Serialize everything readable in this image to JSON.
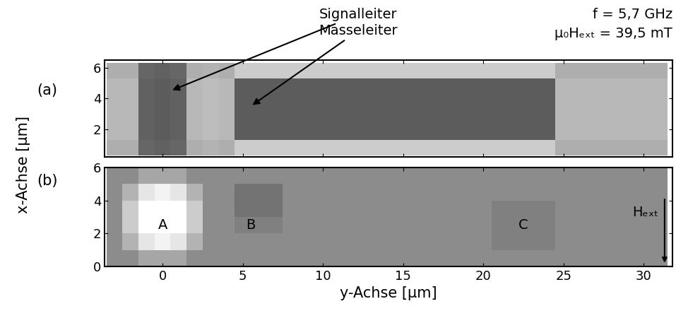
{
  "figure": {
    "y_label": "x-Achse [µm]",
    "notes": [
      "f = 5,7 GHz",
      "µ₀Hₑₓₜ = 39,5 mT"
    ]
  },
  "chart_data": [
    {
      "type": "heatmap",
      "panel": "(a)",
      "color": "gray",
      "color_range": [
        0,
        1
      ],
      "xlim": [
        -3.6,
        31.8
      ],
      "xticks": [
        0,
        5,
        10,
        15,
        20,
        25,
        30
      ],
      "ylim": [
        0.2,
        6.5
      ],
      "yticks": [
        2,
        4,
        6
      ],
      "tick_labels": "y",
      "columns": [
        -3,
        -2,
        -1,
        0,
        1,
        2,
        3,
        4,
        5,
        6,
        7,
        8,
        9,
        10,
        11,
        12,
        13,
        14,
        15,
        16,
        17,
        18,
        19,
        20,
        21,
        22,
        23,
        24,
        25,
        26,
        27,
        28,
        29,
        30,
        31
      ],
      "rows": [
        0.8,
        1.8,
        2.8,
        3.8,
        4.8,
        5.8
      ],
      "cells": [
        [
          0.68,
          0.68,
          0.4,
          0.38,
          0.4,
          0.68,
          0.7,
          0.68,
          0.8,
          0.8,
          0.8,
          0.8,
          0.8,
          0.8,
          0.8,
          0.8,
          0.8,
          0.8,
          0.8,
          0.8,
          0.8,
          0.8,
          0.8,
          0.8,
          0.8,
          0.8,
          0.8,
          0.8,
          0.68,
          0.68,
          0.68,
          0.68,
          0.68,
          0.68,
          0.68
        ],
        [
          0.72,
          0.72,
          0.38,
          0.36,
          0.38,
          0.72,
          0.74,
          0.72,
          0.36,
          0.36,
          0.36,
          0.36,
          0.36,
          0.36,
          0.36,
          0.36,
          0.36,
          0.36,
          0.36,
          0.36,
          0.36,
          0.36,
          0.36,
          0.36,
          0.36,
          0.36,
          0.36,
          0.36,
          0.72,
          0.72,
          0.72,
          0.72,
          0.72,
          0.72,
          0.72
        ],
        [
          0.72,
          0.72,
          0.38,
          0.36,
          0.38,
          0.72,
          0.74,
          0.72,
          0.36,
          0.36,
          0.36,
          0.36,
          0.36,
          0.36,
          0.36,
          0.36,
          0.36,
          0.36,
          0.36,
          0.36,
          0.36,
          0.36,
          0.36,
          0.36,
          0.36,
          0.36,
          0.36,
          0.36,
          0.72,
          0.72,
          0.72,
          0.72,
          0.72,
          0.72,
          0.72
        ],
        [
          0.72,
          0.72,
          0.38,
          0.36,
          0.38,
          0.72,
          0.74,
          0.72,
          0.36,
          0.36,
          0.36,
          0.36,
          0.36,
          0.36,
          0.36,
          0.36,
          0.36,
          0.36,
          0.36,
          0.36,
          0.36,
          0.36,
          0.36,
          0.36,
          0.36,
          0.36,
          0.36,
          0.36,
          0.72,
          0.72,
          0.72,
          0.72,
          0.72,
          0.72,
          0.72
        ],
        [
          0.72,
          0.72,
          0.38,
          0.36,
          0.38,
          0.72,
          0.74,
          0.72,
          0.36,
          0.36,
          0.36,
          0.36,
          0.36,
          0.36,
          0.36,
          0.36,
          0.36,
          0.36,
          0.36,
          0.36,
          0.36,
          0.36,
          0.36,
          0.36,
          0.36,
          0.36,
          0.36,
          0.36,
          0.72,
          0.72,
          0.72,
          0.72,
          0.72,
          0.72,
          0.72
        ],
        [
          0.68,
          0.68,
          0.4,
          0.38,
          0.4,
          0.68,
          0.7,
          0.68,
          0.8,
          0.8,
          0.8,
          0.8,
          0.8,
          0.8,
          0.8,
          0.8,
          0.8,
          0.8,
          0.8,
          0.8,
          0.8,
          0.8,
          0.8,
          0.8,
          0.8,
          0.8,
          0.8,
          0.8,
          0.68,
          0.68,
          0.68,
          0.68,
          0.68,
          0.68,
          0.68
        ]
      ],
      "annotations": [
        {
          "text": "Signalleiter",
          "y": 0.5,
          "x": 4.5
        },
        {
          "text": "Masseleiter",
          "y": 5.5,
          "x": 3.5
        }
      ]
    },
    {
      "type": "heatmap",
      "panel": "(b)",
      "color": "gray",
      "color_range": [
        0,
        1
      ],
      "x_label": "y-Achse [µm]",
      "xlim": [
        -3.6,
        31.8
      ],
      "xticks": [
        0,
        5,
        10,
        15,
        20,
        25,
        30
      ],
      "ylim": [
        0,
        6
      ],
      "yticks": [
        0,
        2,
        4,
        6
      ],
      "columns": [
        -3,
        -2,
        -1,
        0,
        1,
        2,
        3,
        4,
        5,
        6,
        7,
        8,
        9,
        10,
        11,
        12,
        13,
        14,
        15,
        16,
        17,
        18,
        19,
        20,
        21,
        22,
        23,
        24,
        25,
        26,
        27,
        28,
        29,
        30,
        31
      ],
      "rows": [
        0.5,
        1.5,
        2.5,
        3.5,
        4.5,
        5.5
      ],
      "cells": [
        [
          0.55,
          0.55,
          0.65,
          0.65,
          0.65,
          0.55,
          0.55,
          0.55,
          0.55,
          0.55,
          0.55,
          0.55,
          0.55,
          0.55,
          0.55,
          0.55,
          0.55,
          0.55,
          0.55,
          0.55,
          0.55,
          0.55,
          0.55,
          0.55,
          0.55,
          0.55,
          0.55,
          0.55,
          0.55,
          0.55,
          0.55,
          0.55,
          0.55,
          0.55,
          0.55
        ],
        [
          0.55,
          0.7,
          0.9,
          0.95,
          0.9,
          0.7,
          0.55,
          0.55,
          0.55,
          0.55,
          0.55,
          0.55,
          0.55,
          0.55,
          0.55,
          0.55,
          0.55,
          0.55,
          0.55,
          0.55,
          0.55,
          0.55,
          0.55,
          0.55,
          0.5,
          0.5,
          0.5,
          0.5,
          0.55,
          0.55,
          0.55,
          0.55,
          0.55,
          0.55,
          0.55
        ],
        [
          0.55,
          0.8,
          1.0,
          1.0,
          1.0,
          0.8,
          0.55,
          0.55,
          0.5,
          0.5,
          0.5,
          0.55,
          0.55,
          0.55,
          0.55,
          0.55,
          0.55,
          0.55,
          0.55,
          0.55,
          0.55,
          0.55,
          0.55,
          0.55,
          0.5,
          0.5,
          0.5,
          0.5,
          0.55,
          0.55,
          0.55,
          0.55,
          0.55,
          0.55,
          0.55
        ],
        [
          0.55,
          0.8,
          1.0,
          1.0,
          1.0,
          0.8,
          0.55,
          0.55,
          0.45,
          0.45,
          0.45,
          0.55,
          0.55,
          0.55,
          0.55,
          0.55,
          0.55,
          0.55,
          0.55,
          0.55,
          0.55,
          0.55,
          0.55,
          0.55,
          0.5,
          0.5,
          0.5,
          0.5,
          0.55,
          0.55,
          0.55,
          0.55,
          0.55,
          0.55,
          0.55
        ],
        [
          0.55,
          0.7,
          0.9,
          0.95,
          0.9,
          0.7,
          0.55,
          0.55,
          0.45,
          0.45,
          0.45,
          0.55,
          0.55,
          0.55,
          0.55,
          0.55,
          0.55,
          0.55,
          0.55,
          0.55,
          0.55,
          0.55,
          0.55,
          0.55,
          0.55,
          0.55,
          0.55,
          0.55,
          0.55,
          0.55,
          0.55,
          0.55,
          0.55,
          0.55,
          0.55
        ],
        [
          0.55,
          0.55,
          0.65,
          0.65,
          0.65,
          0.55,
          0.55,
          0.55,
          0.55,
          0.55,
          0.55,
          0.55,
          0.55,
          0.55,
          0.55,
          0.55,
          0.55,
          0.55,
          0.55,
          0.55,
          0.55,
          0.55,
          0.55,
          0.55,
          0.55,
          0.55,
          0.55,
          0.55,
          0.55,
          0.55,
          0.55,
          0.55,
          0.55,
          0.55,
          0.55
        ]
      ],
      "labels": [
        {
          "text": "A",
          "y": 0,
          "x": 2.5
        },
        {
          "text": "B",
          "y": 5.5,
          "x": 2.5
        },
        {
          "text": "C",
          "y": 22.5,
          "x": 2.5
        }
      ],
      "field_arrow": {
        "text": "Hₑₓₜ",
        "y": 31.3,
        "x": 3.0
      }
    }
  ]
}
